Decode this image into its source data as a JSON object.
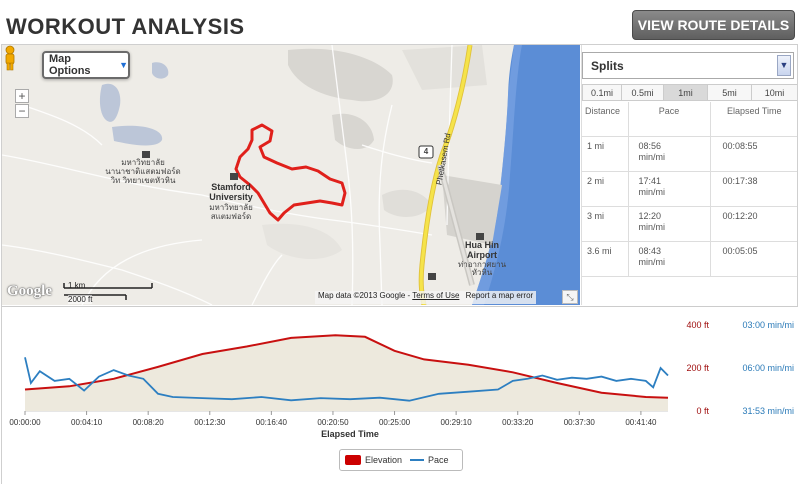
{
  "header": {
    "title": "WORKOUT ANALYSIS",
    "route_button": "VIEW ROUTE DETAILS"
  },
  "map": {
    "map_options_label": "Map Options",
    "zoom_in": "+",
    "zoom_out": "−",
    "google_logo": "Google",
    "scale_km": "1 km",
    "scale_ft": "2000 ft",
    "attribution": "Map data ©2013 Google -",
    "terms": "Terms of Use",
    "report": "Report a map error",
    "labels": {
      "stamford_en1": "Stamford",
      "stamford_en2": "University",
      "stamford_th1": "มหาวิทยาลัย",
      "stamford_th2": "สแตมฟอร์ด",
      "campus_th1": "มหาวิทยาลัย",
      "campus_th2": "นานาชาติแสตมฟอร์ด",
      "campus_th3": "วิท วิทยาเขตหัวหิน",
      "road": "Phetkasem Rd",
      "airport1": "Hua Hin",
      "airport2": "Airport",
      "airport_th1": "ท่าอากาศยาน",
      "airport_th2": "หัวหิน",
      "route_no": "4"
    },
    "route_color": "#e0201b",
    "road_color": "#f5e34a",
    "water_color": "#5b8dd6"
  },
  "splits": {
    "selector_label": "Splits",
    "tabs": [
      "0.1mi",
      "0.5mi",
      "1mi",
      "5mi",
      "10mi"
    ],
    "active_tab": "1mi",
    "columns": [
      "Distance",
      "Pace",
      "Elapsed Time"
    ],
    "rows": [
      {
        "distance": "1 mi",
        "pace_value": "08:56",
        "pace_unit": "min/mi",
        "elapsed": "00:08:55"
      },
      {
        "distance": "2 mi",
        "pace_value": "17:41",
        "pace_unit": "min/mi",
        "elapsed": "00:17:38"
      },
      {
        "distance": "3 mi",
        "pace_value": "12:20",
        "pace_unit": "min/mi",
        "elapsed": "00:12:20"
      },
      {
        "distance": "3.6 mi",
        "pace_value": "08:43",
        "pace_unit": "min/mi",
        "elapsed": "00:05:05"
      }
    ]
  },
  "chart_data": {
    "type": "area",
    "xlabel": "Elapsed Time",
    "x_ticks": [
      "00:00:00",
      "00:04:10",
      "00:08:20",
      "00:12:30",
      "00:16:40",
      "00:20:50",
      "00:25:00",
      "00:29:10",
      "00:33:20",
      "00:37:30",
      "00:41:40"
    ],
    "x_minutes": [
      0,
      4.1667,
      8.3333,
      12.5,
      16.6667,
      20.8333,
      25,
      29.1667,
      33.3333,
      37.5,
      41.6667
    ],
    "x_max_minutes": 43.5,
    "left_axis": {
      "ticks": [
        "400 ft",
        "200 ft",
        "0 ft"
      ],
      "values": [
        400,
        200,
        0
      ],
      "color": "#a01010"
    },
    "right_axis": {
      "ticks": [
        "03:00 min/mi",
        "06:00 min/mi",
        "31:53 min/mi"
      ],
      "color": "#2a7ab8"
    },
    "series": [
      {
        "name": "Elevation",
        "unit": "ft",
        "color": "#c81010",
        "fill": "#ede9dd",
        "x": [
          0,
          3,
          6,
          9,
          12,
          15,
          18,
          21,
          23,
          25,
          27,
          30,
          33,
          36,
          39,
          42,
          43.5
        ],
        "values": [
          100,
          115,
          150,
          205,
          265,
          300,
          340,
          352,
          345,
          280,
          240,
          215,
          180,
          130,
          85,
          65,
          62
        ]
      },
      {
        "name": "Pace",
        "unit": "min/mi (pixel-scaled)",
        "color": "#2d7fc1",
        "x": [
          0,
          0.4,
          1,
          2,
          3,
          4,
          5,
          6,
          7,
          8,
          9,
          10,
          12,
          14,
          16,
          18,
          20,
          22,
          24,
          26,
          28,
          30,
          32,
          33,
          34,
          35,
          36,
          37,
          38,
          39,
          40,
          41,
          42,
          42.5,
          43,
          43.5
        ],
        "values": [
          250,
          130,
          185,
          140,
          150,
          95,
          160,
          190,
          165,
          150,
          80,
          65,
          60,
          55,
          65,
          50,
          60,
          55,
          62,
          48,
          80,
          90,
          100,
          140,
          150,
          165,
          145,
          155,
          150,
          160,
          140,
          150,
          140,
          110,
          200,
          165
        ]
      }
    ],
    "legend_position": "bottom-center"
  }
}
